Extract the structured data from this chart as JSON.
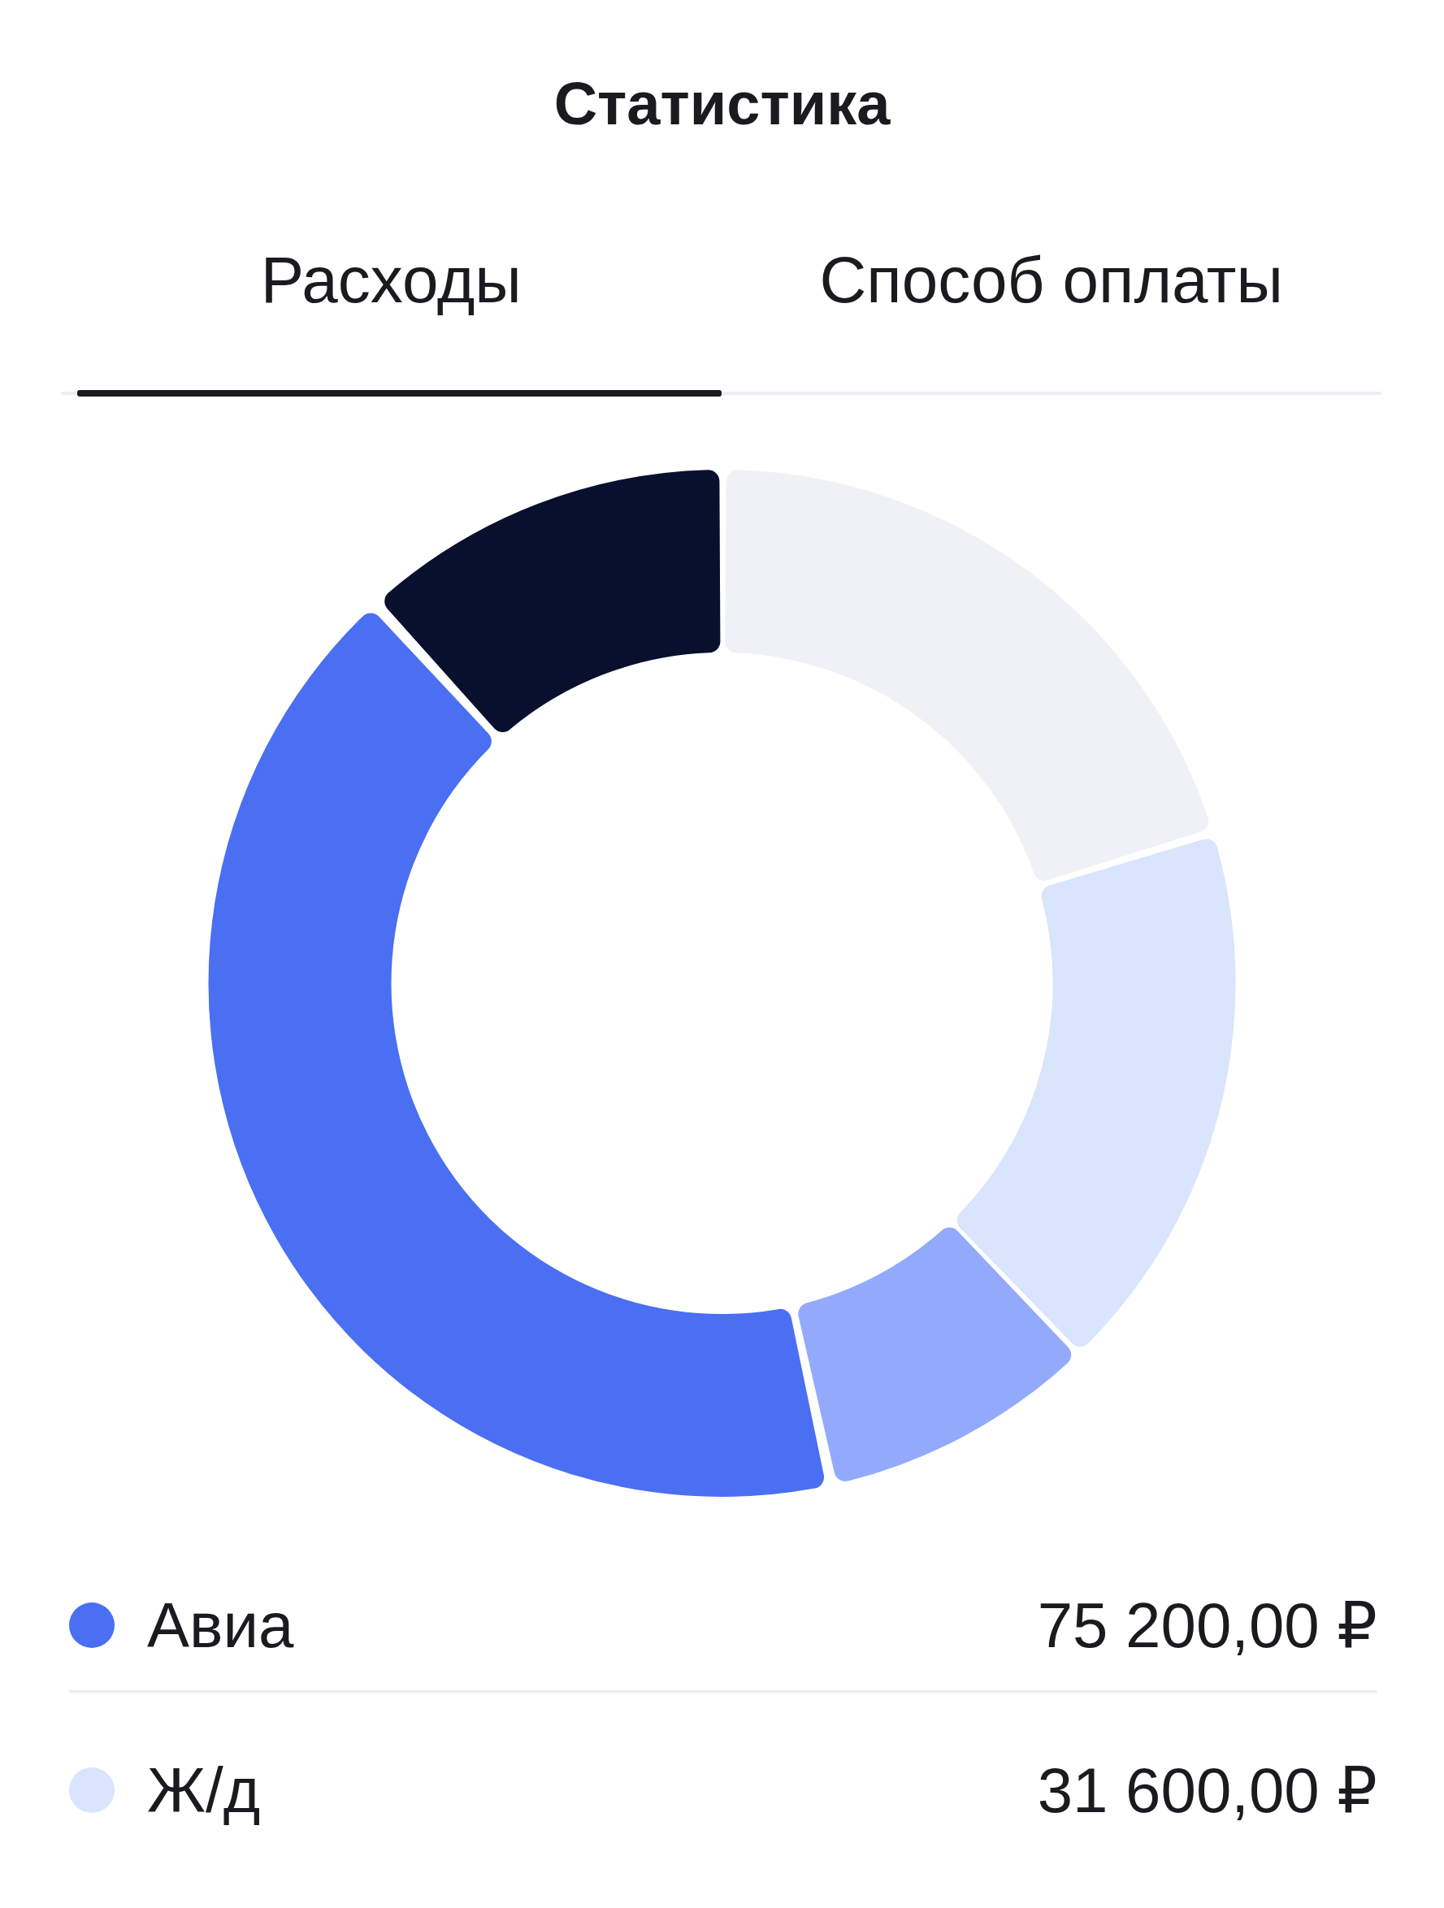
{
  "chart_data": {
    "type": "donut",
    "title": "Статистика",
    "annotations": [
      "Расходы",
      "Способ оплаты"
    ],
    "categories": [
      null,
      "Ж/д",
      null,
      "Авиа",
      null
    ],
    "values": [
      36400,
      31600,
      15500,
      75200,
      21000
    ],
    "colors": [
      "#eff1f6",
      "#d9e4fd",
      "#93aafc",
      "#4a6ff2",
      "#08102e"
    ],
    "value_labels": [
      null,
      "31 600,00 ₽",
      null,
      "75 200,00 ₽",
      null
    ],
    "legend": "bottom"
  }
}
